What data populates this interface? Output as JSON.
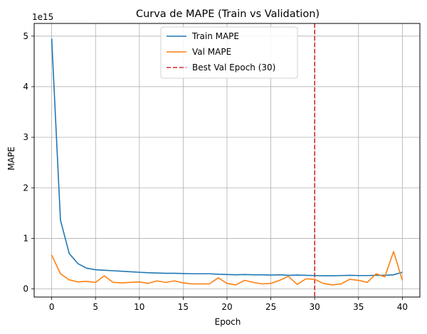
{
  "chart_data": {
    "type": "line",
    "title": "Curva de MAPE (Train vs Validation)",
    "xlabel": "Epoch",
    "ylabel": "MAPE",
    "y_offset_label": "1e15",
    "y_scale_note": "values in units of 1e15",
    "xlim": [
      -2,
      42
    ],
    "ylim": [
      -0.16,
      5.25
    ],
    "x_ticks": [
      0,
      5,
      10,
      15,
      20,
      25,
      30,
      35,
      40
    ],
    "y_ticks": [
      0,
      1,
      2,
      3,
      4,
      5
    ],
    "grid": true,
    "legend_position": "top-center",
    "x": [
      0,
      1,
      2,
      3,
      4,
      5,
      6,
      7,
      8,
      9,
      10,
      11,
      12,
      13,
      14,
      15,
      16,
      17,
      18,
      19,
      20,
      21,
      22,
      23,
      24,
      25,
      26,
      27,
      28,
      29,
      30,
      31,
      32,
      33,
      34,
      35,
      36,
      37,
      38,
      39,
      40
    ],
    "series": [
      {
        "name": "Train MAPE",
        "color": "#1f77b4",
        "style": "solid",
        "values": [
          4.95,
          1.36,
          0.7,
          0.5,
          0.41,
          0.38,
          0.37,
          0.36,
          0.35,
          0.34,
          0.33,
          0.32,
          0.315,
          0.31,
          0.31,
          0.305,
          0.3,
          0.3,
          0.3,
          0.29,
          0.285,
          0.28,
          0.285,
          0.28,
          0.28,
          0.275,
          0.28,
          0.27,
          0.275,
          0.27,
          0.265,
          0.26,
          0.26,
          0.265,
          0.27,
          0.265,
          0.265,
          0.27,
          0.27,
          0.28,
          0.33
        ]
      },
      {
        "name": "Val MAPE",
        "color": "#ff7f0e",
        "style": "solid",
        "values": [
          0.67,
          0.3,
          0.18,
          0.14,
          0.15,
          0.13,
          0.26,
          0.13,
          0.12,
          0.13,
          0.14,
          0.11,
          0.16,
          0.13,
          0.16,
          0.12,
          0.1,
          0.1,
          0.1,
          0.22,
          0.11,
          0.08,
          0.17,
          0.13,
          0.1,
          0.11,
          0.17,
          0.25,
          0.09,
          0.2,
          0.19,
          0.11,
          0.08,
          0.1,
          0.19,
          0.17,
          0.13,
          0.3,
          0.24,
          0.74,
          0.17
        ]
      }
    ],
    "vline": {
      "x": 30,
      "name": "Best Val Epoch (30)",
      "color": "#d62728",
      "style": "dashed"
    }
  }
}
